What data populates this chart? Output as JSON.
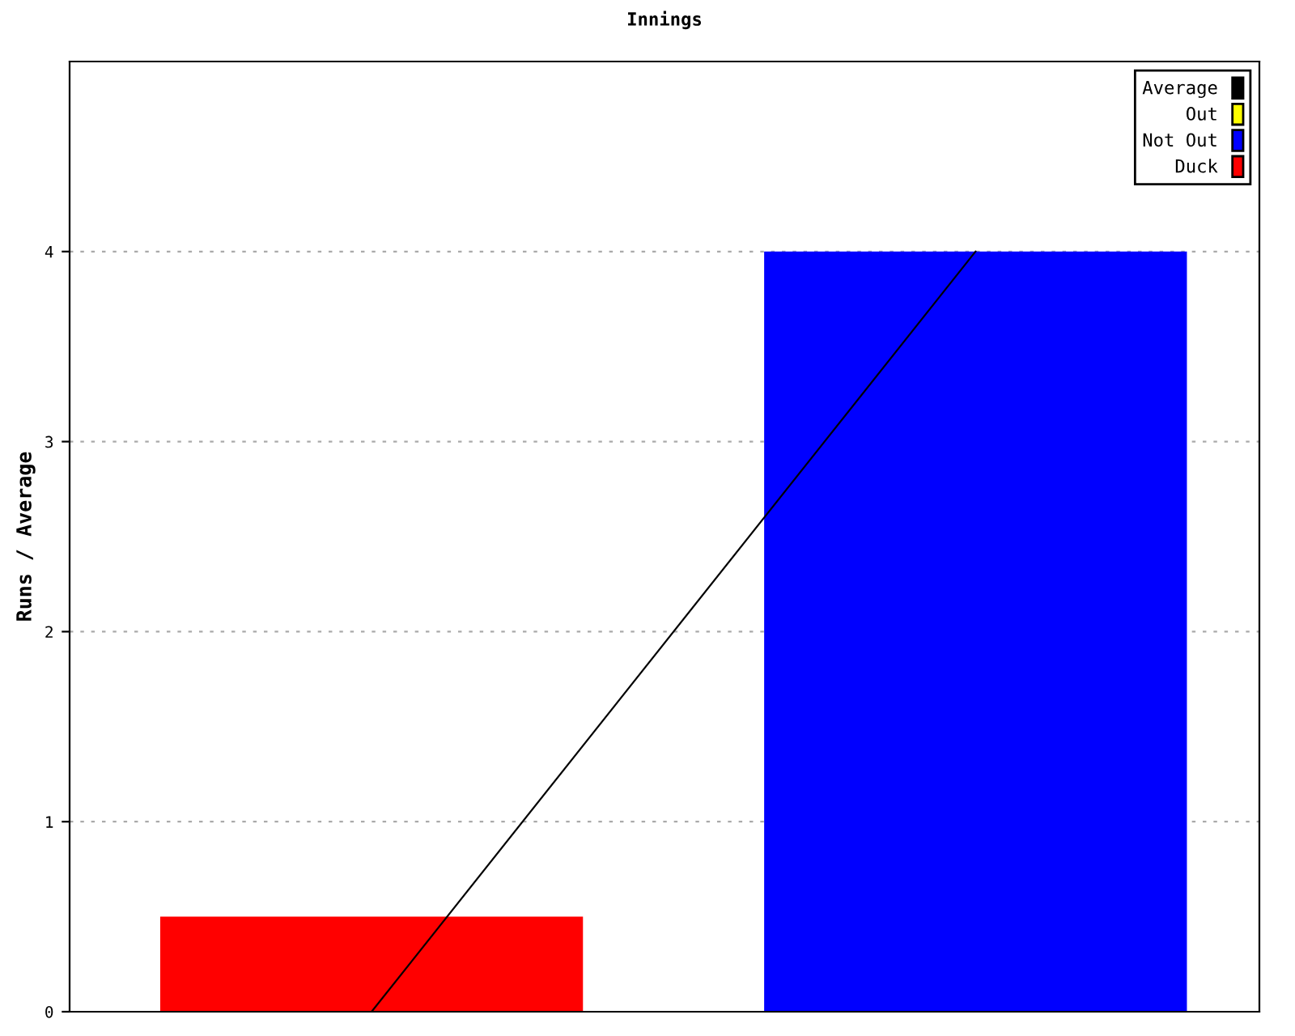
{
  "chart_data": {
    "type": "bar",
    "title": "Innings",
    "ylabel": "Runs / Average",
    "categories": [
      null,
      null
    ],
    "series": [
      {
        "name": "Average",
        "type": "line",
        "color": "#000000",
        "values": [
          0,
          4
        ]
      },
      {
        "name": "Out",
        "color": "#ffff00",
        "values": [
          null,
          null
        ]
      },
      {
        "name": "Not Out",
        "color": "#0000ff",
        "values": [
          null,
          4
        ]
      },
      {
        "name": "Duck",
        "color": "#ff0000",
        "values": [
          0.5,
          null
        ]
      }
    ],
    "ylim": [
      0,
      5
    ],
    "yticks": [
      0,
      1,
      2,
      3,
      4
    ],
    "grid": "y",
    "legend": "top right",
    "marker": "none",
    "line_style": "solid"
  }
}
